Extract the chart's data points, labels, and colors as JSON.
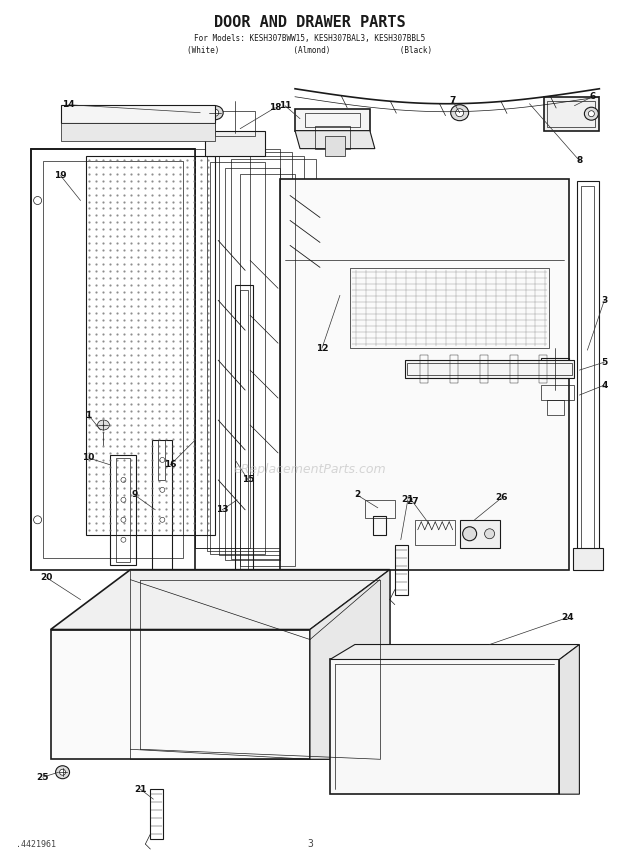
{
  "title_line1": "DOOR AND DRAWER PARTS",
  "title_line2": "For Models: KESH307BWW15, KESH307BAL3, KESH307BBL5",
  "title_line3": "(White)              (Almond)              (Black)",
  "footer_left": ".4421961",
  "footer_center": "3",
  "bg_color": "#ffffff",
  "line_color": "#1a1a1a",
  "watermark_text": "eReplacementParts.com",
  "fig_w": 6.2,
  "fig_h": 8.56,
  "dpi": 100
}
